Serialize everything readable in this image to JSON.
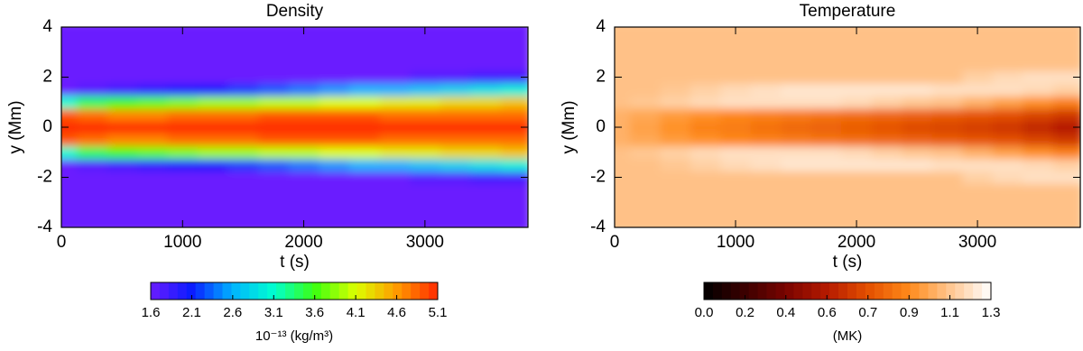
{
  "chart_data": [
    {
      "type": "heatmap",
      "title": "Density",
      "xlabel": "t (s)",
      "ylabel": "y (Mm)",
      "xlim": [
        0,
        3850
      ],
      "ylim": [
        -4,
        4
      ],
      "xticks": [
        0,
        1000,
        2000,
        3000
      ],
      "yticks": [
        -4,
        -2,
        0,
        2,
        4
      ],
      "x": [
        0,
        250,
        500,
        750,
        1000,
        1250,
        1500,
        1750,
        2000,
        2250,
        2500,
        2750,
        3000,
        3250,
        3500,
        3750
      ],
      "y": [
        -4,
        -3.5,
        -3,
        -2.5,
        -2,
        -1.5,
        -1,
        -0.5,
        0,
        0.5,
        1,
        1.5,
        2,
        2.5,
        3,
        3.5,
        4
      ],
      "z": [
        [
          1.6,
          1.6,
          1.6,
          1.6,
          1.6,
          1.6,
          1.6,
          1.6,
          1.6,
          1.6,
          1.6,
          1.6,
          1.6,
          1.6,
          1.6,
          1.6
        ],
        [
          1.6,
          1.6,
          1.6,
          1.6,
          1.6,
          1.6,
          1.6,
          1.6,
          1.6,
          1.6,
          1.6,
          1.6,
          1.6,
          1.6,
          1.6,
          1.6
        ],
        [
          1.6,
          1.6,
          1.6,
          1.6,
          1.6,
          1.6,
          1.6,
          1.6,
          1.6,
          1.6,
          1.6,
          1.6,
          1.6,
          1.6,
          1.6,
          1.6
        ],
        [
          1.6,
          1.6,
          1.6,
          1.6,
          1.6,
          1.6,
          1.6,
          1.6,
          1.6,
          1.6,
          1.6,
          1.6,
          1.6,
          1.6,
          1.6,
          1.6
        ],
        [
          1.6,
          1.6,
          1.6,
          1.6,
          1.6,
          1.6,
          1.6,
          1.6,
          1.6,
          1.6,
          1.6,
          1.6,
          1.7,
          1.7,
          1.8,
          1.8
        ],
        [
          1.6,
          1.7,
          1.8,
          1.9,
          2.0,
          2.1,
          2.2,
          2.3,
          2.4,
          2.5,
          2.6,
          2.6,
          2.7,
          2.8,
          2.9,
          3.0
        ],
        [
          3.1,
          3.4,
          3.6,
          3.7,
          3.8,
          3.9,
          3.9,
          4.0,
          4.0,
          4.1,
          4.1,
          4.2,
          4.2,
          4.3,
          4.3,
          4.4
        ],
        [
          4.9,
          4.8,
          4.7,
          4.7,
          4.8,
          4.8,
          4.8,
          4.9,
          4.9,
          4.9,
          4.9,
          4.8,
          4.8,
          4.8,
          4.8,
          4.8
        ],
        [
          5.1,
          5.1,
          5.1,
          5.1,
          5.1,
          5.1,
          5.1,
          5.1,
          5.1,
          5.1,
          5.1,
          5.1,
          5.1,
          5.1,
          5.1,
          5.1
        ],
        [
          4.9,
          4.8,
          4.7,
          4.7,
          4.8,
          4.8,
          4.8,
          4.9,
          4.9,
          4.9,
          4.9,
          4.8,
          4.8,
          4.8,
          4.8,
          4.8
        ],
        [
          3.1,
          3.4,
          3.6,
          3.7,
          3.8,
          3.9,
          3.9,
          4.0,
          4.0,
          4.1,
          4.1,
          4.2,
          4.2,
          4.3,
          4.3,
          4.4
        ],
        [
          1.6,
          1.7,
          1.8,
          1.9,
          2.0,
          2.1,
          2.2,
          2.3,
          2.4,
          2.5,
          2.6,
          2.6,
          2.7,
          2.8,
          2.9,
          3.0
        ],
        [
          1.6,
          1.6,
          1.6,
          1.6,
          1.6,
          1.6,
          1.6,
          1.6,
          1.6,
          1.6,
          1.6,
          1.6,
          1.7,
          1.7,
          1.8,
          1.8
        ],
        [
          1.6,
          1.6,
          1.6,
          1.6,
          1.6,
          1.6,
          1.6,
          1.6,
          1.6,
          1.6,
          1.6,
          1.6,
          1.6,
          1.6,
          1.6,
          1.6
        ],
        [
          1.6,
          1.6,
          1.6,
          1.6,
          1.6,
          1.6,
          1.6,
          1.6,
          1.6,
          1.6,
          1.6,
          1.6,
          1.6,
          1.6,
          1.6,
          1.6
        ],
        [
          1.6,
          1.6,
          1.6,
          1.6,
          1.6,
          1.6,
          1.6,
          1.6,
          1.6,
          1.6,
          1.6,
          1.6,
          1.6,
          1.6,
          1.6,
          1.6
        ],
        [
          1.6,
          1.6,
          1.6,
          1.6,
          1.6,
          1.6,
          1.6,
          1.6,
          1.6,
          1.6,
          1.6,
          1.6,
          1.6,
          1.6,
          1.6,
          1.6
        ]
      ],
      "colorbar": {
        "label": "10⁻¹³  (kg/m³)",
        "clim": [
          1.6,
          5.1
        ],
        "ticks": [
          1.6,
          2.1,
          2.6,
          3.1,
          3.6,
          4.1,
          4.6,
          5.1
        ],
        "colors": [
          "#6a1cff",
          "#0a1cff",
          "#00b4ff",
          "#00ffd0",
          "#3cff10",
          "#dcff00",
          "#ff9a00",
          "#ff2a00"
        ]
      }
    },
    {
      "type": "heatmap",
      "title": "Temperature",
      "xlabel": "t (s)",
      "ylabel": "y (Mm)",
      "xlim": [
        0,
        3850
      ],
      "ylim": [
        -4,
        4
      ],
      "xticks": [
        0,
        1000,
        2000,
        3000
      ],
      "yticks": [
        -4,
        -2,
        0,
        2,
        4
      ],
      "x": [
        0,
        250,
        500,
        750,
        1000,
        1250,
        1500,
        1750,
        2000,
        2250,
        2500,
        2750,
        3000,
        3250,
        3500,
        3750
      ],
      "y": [
        -4,
        -3.5,
        -3,
        -2.5,
        -2,
        -1.5,
        -1,
        -0.5,
        0,
        0.5,
        1,
        1.5,
        2,
        2.5,
        3,
        3.5,
        4
      ],
      "z": [
        [
          1.1,
          1.1,
          1.1,
          1.1,
          1.1,
          1.1,
          1.1,
          1.1,
          1.1,
          1.1,
          1.1,
          1.1,
          1.1,
          1.1,
          1.1,
          1.1
        ],
        [
          1.1,
          1.1,
          1.1,
          1.1,
          1.1,
          1.1,
          1.1,
          1.1,
          1.1,
          1.1,
          1.1,
          1.1,
          1.1,
          1.1,
          1.1,
          1.1
        ],
        [
          1.1,
          1.1,
          1.1,
          1.1,
          1.1,
          1.1,
          1.1,
          1.1,
          1.1,
          1.1,
          1.1,
          1.1,
          1.1,
          1.1,
          1.1,
          1.1
        ],
        [
          1.1,
          1.1,
          1.1,
          1.1,
          1.1,
          1.1,
          1.1,
          1.1,
          1.1,
          1.1,
          1.1,
          1.1,
          1.1,
          1.1,
          1.1,
          1.1
        ],
        [
          1.1,
          1.1,
          1.1,
          1.1,
          1.1,
          1.1,
          1.1,
          1.1,
          1.1,
          1.1,
          1.1,
          1.1,
          1.15,
          1.18,
          1.2,
          1.2
        ],
        [
          1.1,
          1.1,
          1.12,
          1.15,
          1.18,
          1.2,
          1.22,
          1.22,
          1.22,
          1.22,
          1.22,
          1.2,
          1.2,
          1.2,
          1.18,
          1.15
        ],
        [
          1.1,
          1.12,
          1.15,
          1.18,
          1.2,
          1.2,
          1.2,
          1.2,
          1.18,
          1.15,
          1.12,
          1.1,
          1.05,
          1.0,
          0.95,
          0.9
        ],
        [
          1.05,
          1.02,
          0.98,
          0.95,
          0.92,
          0.9,
          0.88,
          0.86,
          0.84,
          0.82,
          0.8,
          0.78,
          0.76,
          0.74,
          0.7,
          0.66
        ],
        [
          1.05,
          1.0,
          0.95,
          0.9,
          0.88,
          0.85,
          0.82,
          0.8,
          0.78,
          0.75,
          0.72,
          0.7,
          0.68,
          0.65,
          0.6,
          0.55
        ],
        [
          1.05,
          1.02,
          0.98,
          0.95,
          0.92,
          0.9,
          0.88,
          0.86,
          0.84,
          0.82,
          0.8,
          0.78,
          0.76,
          0.74,
          0.7,
          0.66
        ],
        [
          1.1,
          1.12,
          1.15,
          1.18,
          1.2,
          1.2,
          1.2,
          1.2,
          1.18,
          1.15,
          1.12,
          1.1,
          1.05,
          1.0,
          0.95,
          0.9
        ],
        [
          1.1,
          1.1,
          1.12,
          1.15,
          1.18,
          1.2,
          1.22,
          1.22,
          1.22,
          1.22,
          1.22,
          1.2,
          1.2,
          1.2,
          1.18,
          1.15
        ],
        [
          1.1,
          1.1,
          1.1,
          1.1,
          1.1,
          1.1,
          1.1,
          1.1,
          1.1,
          1.1,
          1.1,
          1.1,
          1.15,
          1.18,
          1.2,
          1.2
        ],
        [
          1.1,
          1.1,
          1.1,
          1.1,
          1.1,
          1.1,
          1.1,
          1.1,
          1.1,
          1.1,
          1.1,
          1.1,
          1.1,
          1.1,
          1.1,
          1.1
        ],
        [
          1.1,
          1.1,
          1.1,
          1.1,
          1.1,
          1.1,
          1.1,
          1.1,
          1.1,
          1.1,
          1.1,
          1.1,
          1.1,
          1.1,
          1.1,
          1.1
        ],
        [
          1.1,
          1.1,
          1.1,
          1.1,
          1.1,
          1.1,
          1.1,
          1.1,
          1.1,
          1.1,
          1.1,
          1.1,
          1.1,
          1.1,
          1.1,
          1.1
        ],
        [
          1.1,
          1.1,
          1.1,
          1.1,
          1.1,
          1.1,
          1.1,
          1.1,
          1.1,
          1.1,
          1.1,
          1.1,
          1.1,
          1.1,
          1.1,
          1.1
        ]
      ],
      "colorbar": {
        "label": "(MK)",
        "clim": [
          0,
          1.3
        ],
        "ticks": [
          {
            "value": 0,
            "label": "0.0"
          },
          {
            "value": 0.186,
            "label": "0.2"
          },
          {
            "value": 0.371,
            "label": "0.4"
          },
          {
            "value": 0.557,
            "label": "0.6"
          },
          {
            "value": 0.743,
            "label": "0.7"
          },
          {
            "value": 0.929,
            "label": "0.9"
          },
          {
            "value": 1.114,
            "label": "1.1"
          },
          1.3
        ],
        "colors": [
          "#000000",
          "#3c0000",
          "#7a0400",
          "#b51a00",
          "#e45000",
          "#ff8a1a",
          "#ffc690",
          "#ffffff"
        ]
      }
    }
  ]
}
